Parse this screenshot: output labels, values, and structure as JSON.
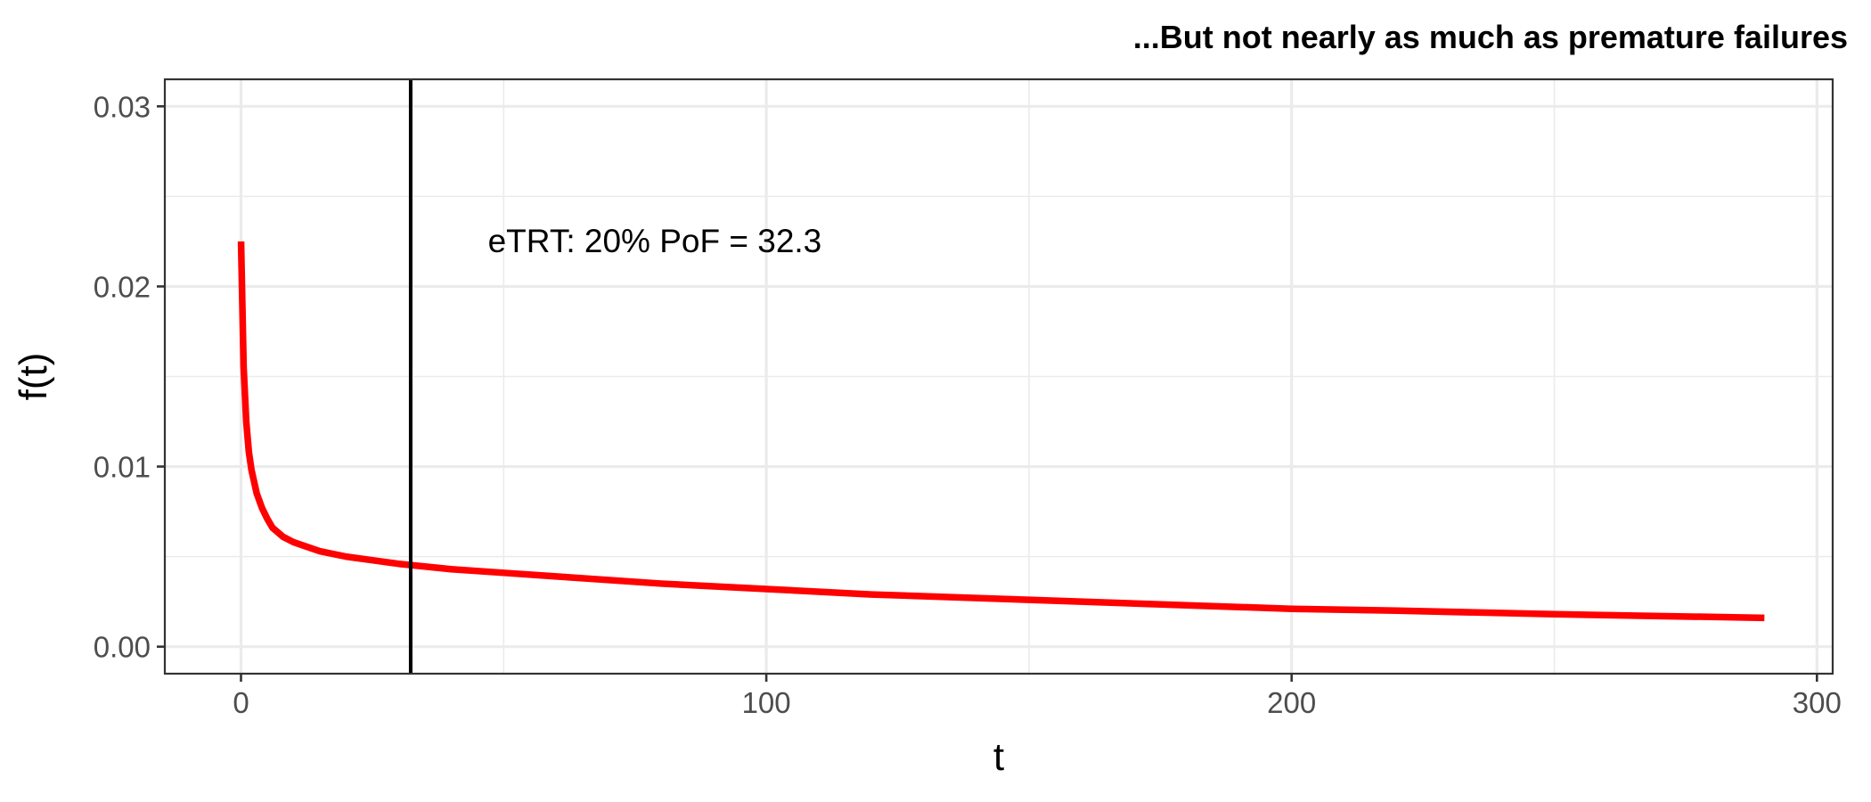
{
  "chart_data": {
    "type": "line",
    "title": "...But not nearly as much as premature failures",
    "xlabel": "t",
    "ylabel": "f(t)",
    "xlim": [
      -14.5,
      303
    ],
    "ylim": [
      -0.0015,
      0.0315
    ],
    "x_ticks": [
      0,
      100,
      200,
      300
    ],
    "x_tick_labels": [
      "0",
      "100",
      "200",
      "300"
    ],
    "y_ticks": [
      0,
      0.01,
      0.02,
      0.03
    ],
    "y_tick_labels": [
      "0.00",
      "0.01",
      "0.02",
      "0.03"
    ],
    "grid": true,
    "series": [
      {
        "color": "#ff0000",
        "x": [
          0.01,
          0.5,
          1,
          1.5,
          2,
          3,
          4,
          5,
          6,
          8,
          10,
          15,
          20,
          25,
          30,
          40,
          50,
          60,
          80,
          100,
          120,
          150,
          180,
          200,
          220,
          250,
          270,
          290
        ],
        "y": [
          0.0225,
          0.0155,
          0.0125,
          0.0108,
          0.0098,
          0.0085,
          0.0077,
          0.0071,
          0.0066,
          0.0061,
          0.0058,
          0.0053,
          0.005,
          0.0048,
          0.0046,
          0.0043,
          0.0041,
          0.0039,
          0.0035,
          0.0032,
          0.0029,
          0.0026,
          0.0023,
          0.0021,
          0.002,
          0.0018,
          0.0017,
          0.0016
        ]
      }
    ],
    "vline": {
      "x": 32.3,
      "color": "#000000"
    },
    "annotation": {
      "text": "eTRT: 20% PoF = 32.3",
      "x": 47,
      "y": 0.0225
    }
  }
}
